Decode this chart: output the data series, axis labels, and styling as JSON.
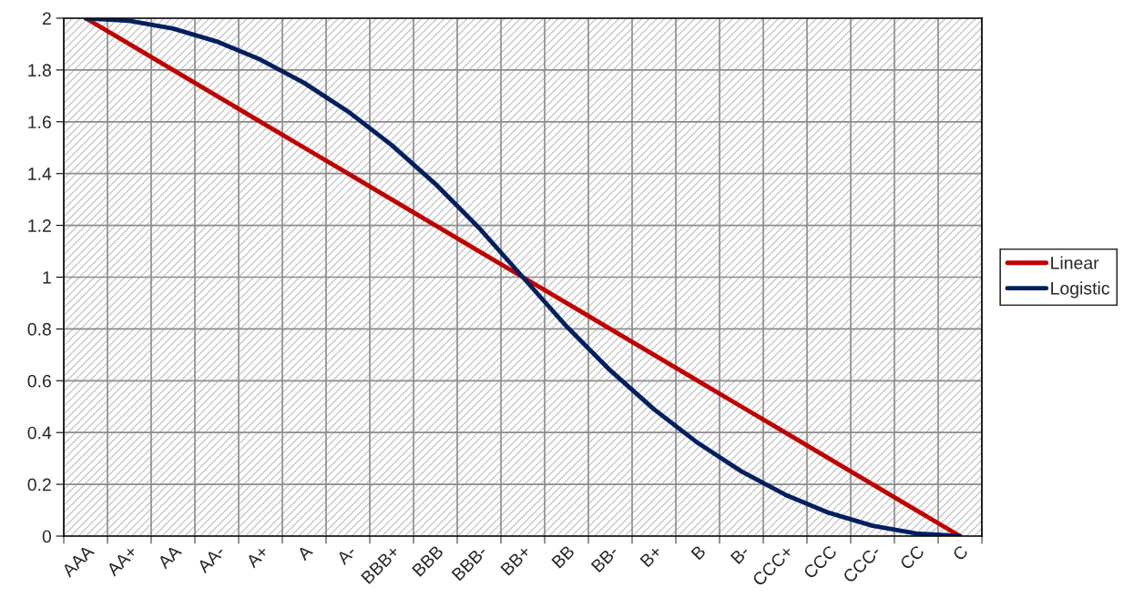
{
  "chart_data": {
    "type": "line",
    "categories": [
      "AAA",
      "AA+",
      "AA",
      "AA-",
      "A+",
      "A",
      "A-",
      "BBB+",
      "BBB",
      "BBB-",
      "BB+",
      "BB",
      "BB-",
      "B+",
      "B",
      "B-",
      "CCC+",
      "CCC",
      "CCC-",
      "CC",
      "C"
    ],
    "series": [
      {
        "name": "Linear",
        "color": "#c00000",
        "values": [
          2,
          1.9,
          1.8,
          1.7,
          1.6,
          1.5,
          1.4,
          1.3,
          1.2,
          1.1,
          1,
          0.9,
          0.8,
          0.7,
          0.6,
          0.5,
          0.4,
          0.3,
          0.2,
          0.1,
          0
        ]
      },
      {
        "name": "Logistic",
        "color": "#002060",
        "values": [
          2,
          1.99,
          1.96,
          1.91,
          1.84,
          1.75,
          1.64,
          1.51,
          1.36,
          1.19,
          1,
          0.81,
          0.64,
          0.49,
          0.36,
          0.25,
          0.16,
          0.09,
          0.04,
          0.01,
          0
        ]
      }
    ],
    "ylim": [
      0,
      2
    ],
    "yticks": [
      0,
      0.2,
      0.4,
      0.6,
      0.8,
      1,
      1.2,
      1.4,
      1.6,
      1.8,
      2
    ],
    "grid": true,
    "legend": "right",
    "marker": "none",
    "line_style": "solid"
  }
}
